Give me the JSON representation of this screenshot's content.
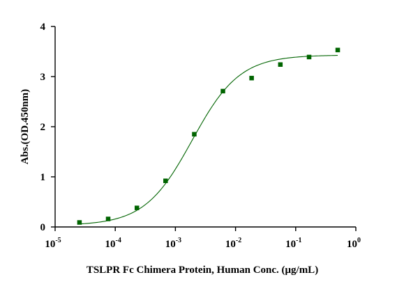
{
  "chart_data": {
    "type": "scatter",
    "xlabel": "TSLPR Fc Chimera Protein, Human Conc. (μg/mL)",
    "ylabel": "Abs.(OD.450nm)",
    "x_scale": "log",
    "xlim": [
      1e-05,
      1
    ],
    "ylim": [
      0,
      4
    ],
    "x_ticks": [
      {
        "value": 1e-05,
        "base": "10",
        "exp": "-5"
      },
      {
        "value": 0.0001,
        "base": "10",
        "exp": "-4"
      },
      {
        "value": 0.001,
        "base": "10",
        "exp": "-3"
      },
      {
        "value": 0.01,
        "base": "10",
        "exp": "-2"
      },
      {
        "value": 0.1,
        "base": "10",
        "exp": "-1"
      },
      {
        "value": 1,
        "base": "10",
        "exp": "0"
      }
    ],
    "y_ticks": [
      0,
      1,
      2,
      3,
      4
    ],
    "grid": false,
    "legend": "none",
    "color": "#006400",
    "series": [
      {
        "marker": "square",
        "points": [
          {
            "x": 2.54e-05,
            "y": 0.09
          },
          {
            "x": 7.62e-05,
            "y": 0.16
          },
          {
            "x": 0.000229,
            "y": 0.38
          },
          {
            "x": 0.000686,
            "y": 0.92
          },
          {
            "x": 0.00206,
            "y": 1.85
          },
          {
            "x": 0.00617,
            "y": 2.71
          },
          {
            "x": 0.0185,
            "y": 2.97
          },
          {
            "x": 0.0556,
            "y": 3.24
          },
          {
            "x": 0.167,
            "y": 3.39
          },
          {
            "x": 0.5,
            "y": 3.53
          }
        ]
      }
    ],
    "fit": {
      "type": "4PL",
      "bottom": 0.03,
      "top": 3.43,
      "ec50": 0.0019,
      "hill": 1.1
    }
  }
}
